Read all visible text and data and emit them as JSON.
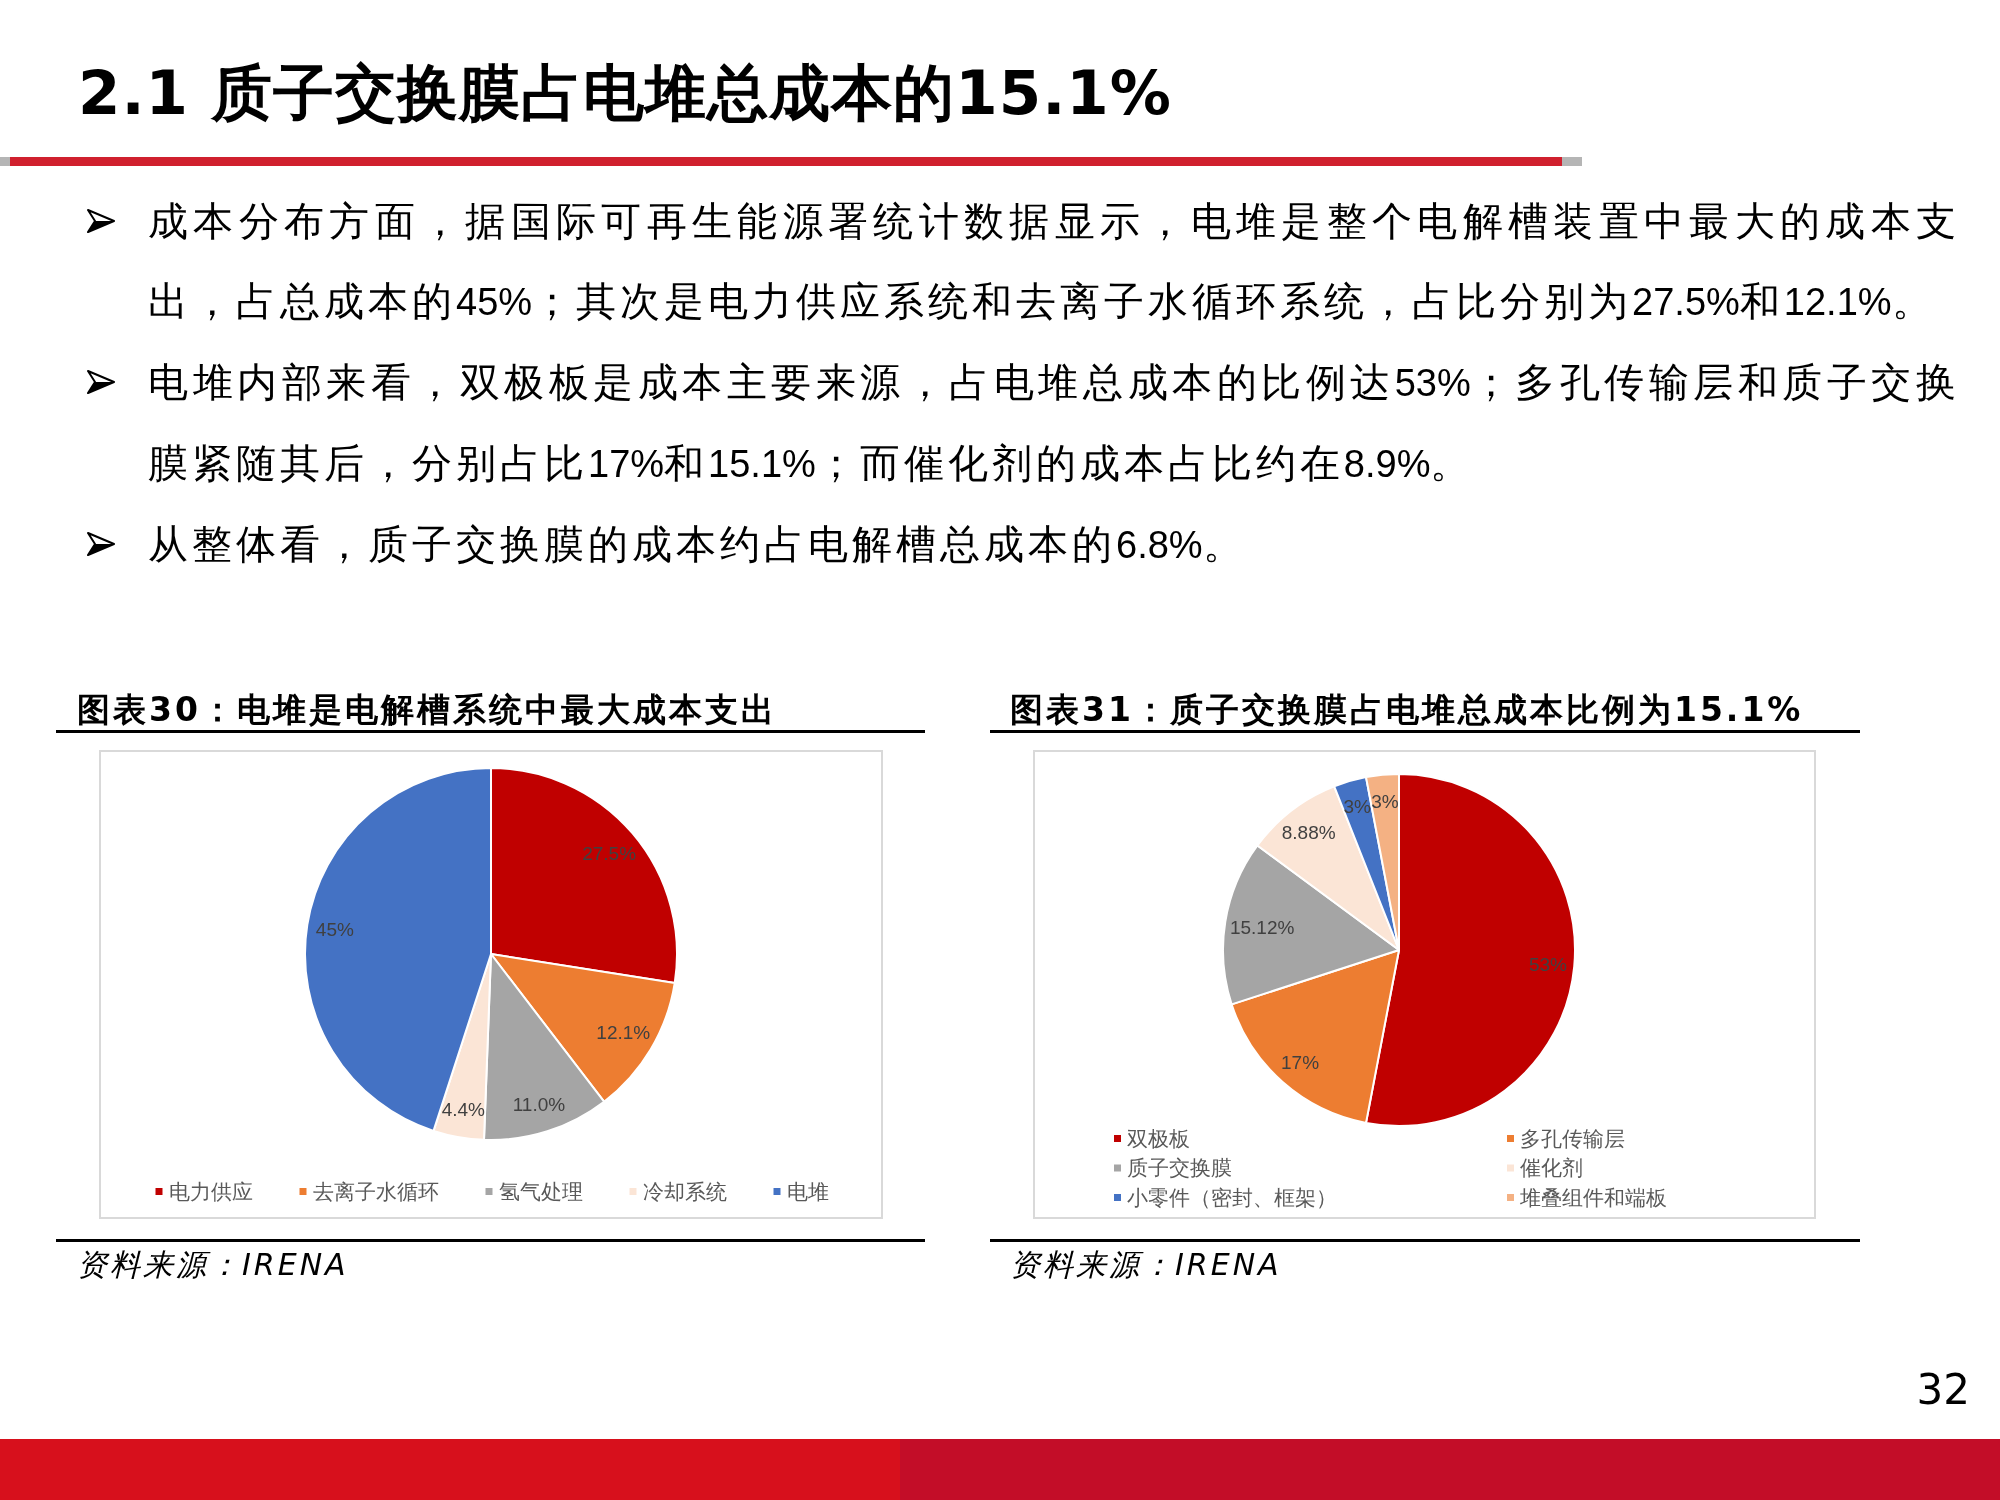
{
  "chart_data": [
    {
      "type": "other",
      "title": "2.1 质子交换膜占电堆总成本的15.1%",
      "annotations": [
        "成本分布方面，据国际可再生能源署统计数据显示，电堆是整个电解槽装置中最大的成本支出，占总成本的45%；其次是电力供应系统和去离子水循环系统，占比分别为27.5%和12.1%。",
        "电堆内部来看，双极板是成本主要来源，占电堆总成本的比例达53%；多孔传输层和质子交换膜紧随其后，分别占比17%和15.1%；而催化剂的成本占比约在8.9%。",
        "从整体看，质子交换膜的成本约占电解槽总成本的6.8%。",
        "32"
      ]
    },
    {
      "type": "pie",
      "title": "图表30：电堆是电解槽系统中最大成本支出",
      "categories": [
        "电力供应",
        "去离子水循环",
        "氢气处理",
        "冷却系统",
        "电堆"
      ],
      "values": [
        27.5,
        12.1,
        11.0,
        4.4,
        45
      ],
      "colors": [
        "#c00000",
        "#ed7d31",
        "#a5a5a5",
        "#fbe5d6",
        "#4472c4"
      ],
      "value_labels": [
        "27.5%",
        "12.1%",
        "11.0%",
        "4.4%",
        "45%"
      ],
      "legend": "bottom",
      "annotations": [
        "资料来源：IRENA"
      ]
    },
    {
      "type": "pie",
      "title": "图表31：质子交换膜占电堆总成本比例为15.1%",
      "categories": [
        "双极板",
        "多孔传输层",
        "质子交换膜",
        "催化剂",
        "小零件（密封、框架）",
        "堆叠组件和端板"
      ],
      "values": [
        53,
        17,
        15.12,
        8.88,
        3,
        3
      ],
      "colors": [
        "#c00000",
        "#ed7d31",
        "#a5a5a5",
        "#fbe5d6",
        "#4472c4",
        "#f4b183"
      ],
      "value_labels": [
        "53%",
        "17%",
        "15.12%",
        "8.88%",
        "3%",
        "3%"
      ],
      "legend": "bottom",
      "annotations": [
        "资料来源：IRENA"
      ]
    }
  ]
}
